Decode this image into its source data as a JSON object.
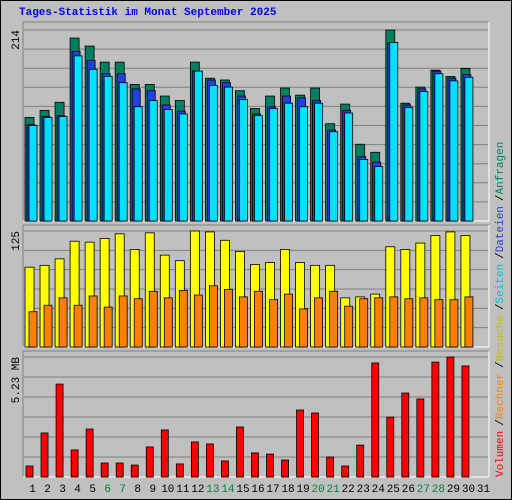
{
  "title": "Tages-Statistik im Monat September 2025",
  "legend_separator": "/",
  "chart_data": [
    {
      "type": "bar",
      "ylim": [
        0,
        214
      ],
      "yticks": [
        214
      ],
      "grid": true,
      "grid_lines": 10,
      "series": [
        {
          "name": "Anfragen",
          "color": "#008060",
          "values": [
            116,
            124,
            133,
            205,
            196,
            178,
            178,
            153,
            153,
            140,
            135,
            178,
            160,
            158,
            146,
            126,
            140,
            149,
            141,
            149,
            109,
            131,
            86,
            77,
            214,
            132,
            150,
            169,
            162,
            171,
            null
          ]
        },
        {
          "name": "Dateien",
          "color": "#2040e0",
          "values": [
            108,
            117,
            118,
            190,
            180,
            165,
            165,
            148,
            146,
            130,
            123,
            168,
            158,
            155,
            140,
            120,
            128,
            140,
            138,
            135,
            102,
            124,
            72,
            66,
            200,
            130,
            148,
            168,
            160,
            164,
            null
          ]
        },
        {
          "name": "Seiten",
          "color": "#00e0ff",
          "values": [
            107,
            116,
            117,
            185,
            170,
            162,
            155,
            128,
            135,
            125,
            120,
            168,
            152,
            150,
            136,
            118,
            126,
            132,
            128,
            132,
            100,
            121,
            69,
            61,
            200,
            127,
            145,
            165,
            157,
            161,
            null
          ]
        }
      ]
    },
    {
      "type": "bar",
      "ylim": [
        0,
        125
      ],
      "yticks": [
        125
      ],
      "grid": true,
      "grid_lines": 6,
      "series": [
        {
          "name": "Besuche",
          "color": "#ffff00",
          "values": [
            86,
            88,
            95,
            114,
            113,
            117,
            122,
            105,
            123,
            99,
            93,
            125,
            124,
            115,
            103,
            89,
            91,
            105,
            91,
            88,
            88,
            53,
            54,
            57,
            108,
            105,
            112,
            120,
            124,
            120,
            null
          ]
        },
        {
          "name": "Rechner",
          "color": "#ff8000",
          "values": [
            38,
            45,
            53,
            45,
            55,
            43,
            55,
            52,
            60,
            53,
            61,
            56,
            66,
            62,
            54,
            60,
            51,
            57,
            41,
            53,
            60,
            44,
            52,
            53,
            54,
            52,
            53,
            51,
            51,
            54,
            null
          ]
        }
      ]
    },
    {
      "type": "bar",
      "ylim": [
        0,
        5.23
      ],
      "yticks": [
        {
          "value": 5.23,
          "label": "5.23 MB"
        }
      ],
      "grid": true,
      "grid_lines": 6,
      "categories": [
        "1",
        "2",
        "3",
        "4",
        "5",
        "6",
        "7",
        "8",
        "9",
        "10",
        "11",
        "12",
        "13",
        "14",
        "15",
        "16",
        "17",
        "18",
        "19",
        "20",
        "21",
        "22",
        "23",
        "24",
        "25",
        "26",
        "27",
        "28",
        "29",
        "30",
        "31"
      ],
      "category_colors": [
        "#000000",
        "#000000",
        "#000000",
        "#000000",
        "#000000",
        "#008040",
        "#008040",
        "#000000",
        "#000000",
        "#000000",
        "#000000",
        "#000000",
        "#008040",
        "#008040",
        "#000000",
        "#000000",
        "#000000",
        "#000000",
        "#000000",
        "#008040",
        "#008040",
        "#000000",
        "#000000",
        "#000000",
        "#000000",
        "#000000",
        "#008040",
        "#008040",
        "#000000",
        "#000000",
        "#000000"
      ],
      "series": [
        {
          "name": "Volumen",
          "color": "#ff0000",
          "values": [
            0.48,
            1.92,
            4.05,
            1.18,
            2.09,
            0.61,
            0.61,
            0.52,
            1.31,
            2.05,
            0.57,
            1.53,
            1.44,
            0.7,
            2.18,
            1.05,
            1.0,
            0.74,
            2.92,
            2.79,
            0.87,
            0.48,
            1.39,
            4.97,
            2.61,
            3.66,
            3.4,
            5.01,
            5.23,
            4.84,
            null
          ]
        }
      ]
    }
  ]
}
